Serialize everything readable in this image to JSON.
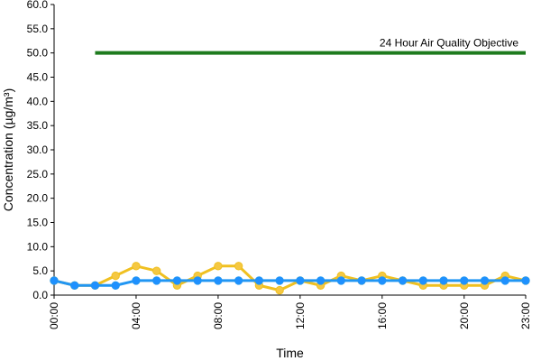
{
  "chart_data": {
    "type": "line",
    "xlabel": "Time",
    "ylabel": "Concentration (µg/m³)",
    "ylim": [
      0,
      60
    ],
    "y_ticks": [
      "0.0",
      "5.0",
      "10.0",
      "15.0",
      "20.0",
      "25.0",
      "30.0",
      "35.0",
      "40.0",
      "45.0",
      "50.0",
      "55.0",
      "60.0"
    ],
    "x_ticks": [
      "00:00",
      "04:00",
      "08:00",
      "12:00",
      "16:00",
      "20:00",
      "23:00"
    ],
    "x_tick_hours": [
      0,
      4,
      8,
      12,
      16,
      20,
      23
    ],
    "grid": false,
    "objective": {
      "label": "24 Hour Air Quality Objective",
      "value": 50,
      "from_hour": 2,
      "to_hour": 23,
      "color": "#1e7b1e"
    },
    "series": [
      {
        "color": "#f0c020",
        "marker_fill": "#f5c842",
        "hours": [
          0,
          1,
          2,
          3,
          4,
          5,
          6,
          7,
          8,
          9,
          10,
          11,
          12,
          13,
          14,
          15,
          16,
          17,
          18,
          19,
          20,
          21,
          22,
          23
        ],
        "values": [
          3,
          2,
          2,
          4,
          6,
          5,
          2,
          4,
          6,
          6,
          2,
          1,
          3,
          2,
          4,
          3,
          4,
          3,
          2,
          2,
          2,
          2,
          4,
          3
        ]
      },
      {
        "color": "#2196f3",
        "marker_fill": "#1e90ff",
        "hours": [
          0,
          1,
          2,
          3,
          4,
          5,
          6,
          7,
          8,
          9,
          10,
          11,
          12,
          13,
          14,
          15,
          16,
          17,
          18,
          19,
          20,
          21,
          22,
          23
        ],
        "values": [
          3,
          2,
          2,
          2,
          3,
          3,
          3,
          3,
          3,
          3,
          3,
          3,
          3,
          3,
          3,
          3,
          3,
          3,
          3,
          3,
          3,
          3,
          3,
          3
        ]
      }
    ]
  }
}
